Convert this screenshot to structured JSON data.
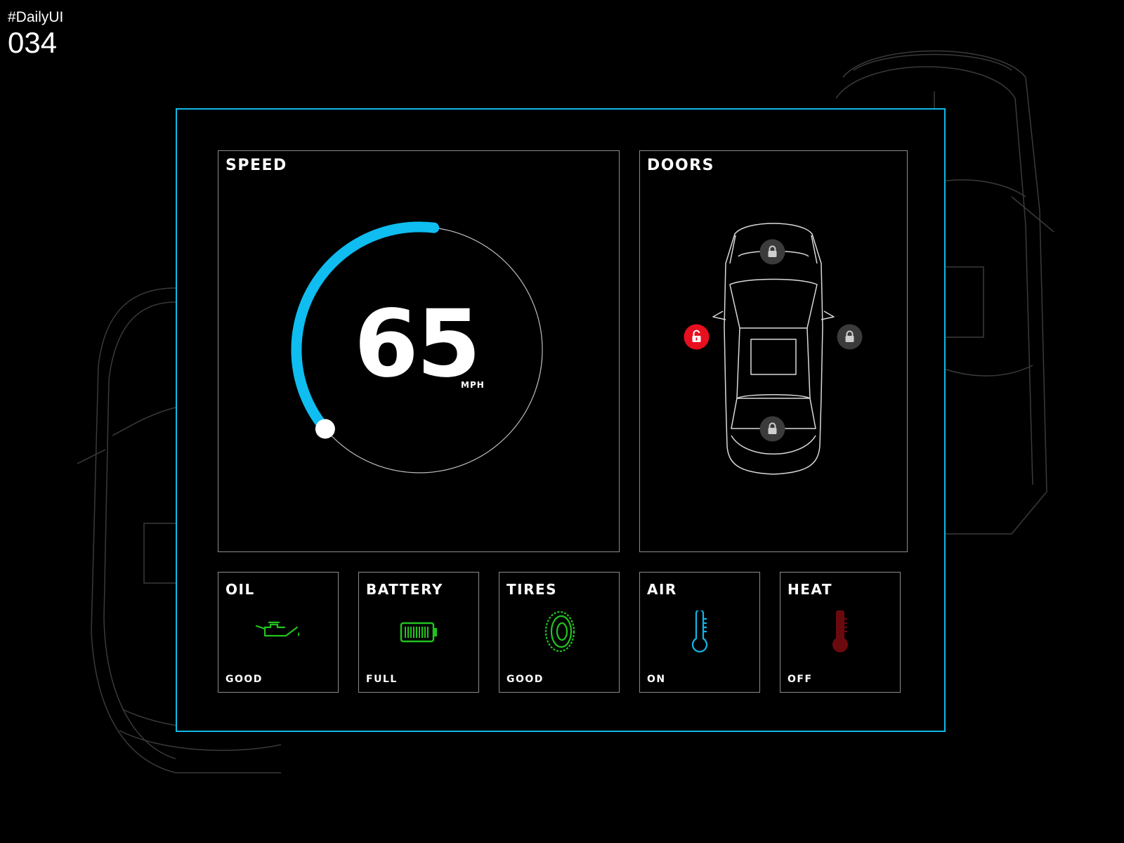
{
  "tag": {
    "hashtag": "#DailyUI",
    "number": "034"
  },
  "speed": {
    "title": "SPEED",
    "value": "65",
    "unit": "MPH",
    "fraction": 0.38
  },
  "doors": {
    "title": "DOORS",
    "locks": [
      {
        "name": "front",
        "state": "locked"
      },
      {
        "name": "left",
        "state": "unlocked"
      },
      {
        "name": "right",
        "state": "locked"
      },
      {
        "name": "rear",
        "state": "locked"
      }
    ]
  },
  "status_cards": [
    {
      "title": "OIL",
      "status": "GOOD",
      "icon": "oil-can-icon",
      "color": "#22c21f"
    },
    {
      "title": "BATTERY",
      "status": "FULL",
      "icon": "battery-icon",
      "color": "#22c21f"
    },
    {
      "title": "TIRES",
      "status": "GOOD",
      "icon": "tire-icon",
      "color": "#22c21f"
    },
    {
      "title": "AIR",
      "status": "ON",
      "icon": "thermometer-icon",
      "color": "#12b5e6"
    },
    {
      "title": "HEAT",
      "status": "OFF",
      "icon": "thermometer-icon",
      "color": "#6b0a0e"
    }
  ],
  "colors": {
    "accent": "#0fb8e8",
    "unlocked": "#e8101e",
    "locked": "#3b3b3b",
    "background": "#000000"
  }
}
